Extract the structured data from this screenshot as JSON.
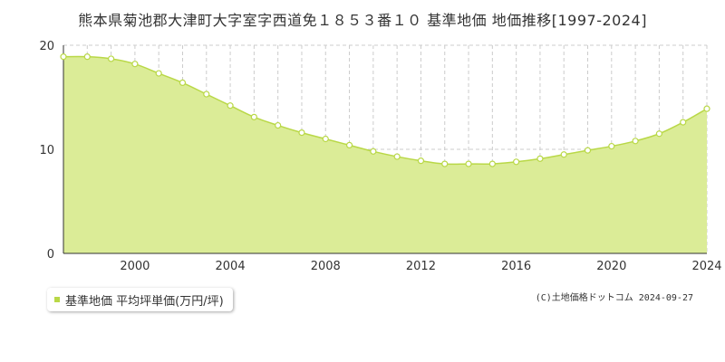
{
  "page_title": "熊本県菊池郡大津町大字室字西道免１８５３番１０ 基準地価 地価推移[1997-2024]",
  "legend_label": "基準地価 平均坪単価(万円/坪)",
  "credit": "(C)土地価格ドットコム 2024-09-27",
  "colors": {
    "area_fill": "#dbec97",
    "line": "#b9d847",
    "marker_fill": "#ffffff",
    "grid": "#cccccc",
    "axis": "#333333"
  },
  "chart_data": {
    "type": "area",
    "title": "熊本県菊池郡大津町大字室字西道免１８５３番１０ 基準地価 地価推移[1997-2024]",
    "xlabel": "",
    "ylabel": "",
    "xlim": [
      1997,
      2024
    ],
    "ylim": [
      0,
      20
    ],
    "x_ticks": [
      2000,
      2004,
      2008,
      2012,
      2016,
      2020,
      2024
    ],
    "y_ticks": [
      0,
      10,
      20
    ],
    "grid": true,
    "legend_position": "bottom-left",
    "series": [
      {
        "name": "基準地価 平均坪単価(万円/坪)",
        "x": [
          1997,
          1998,
          1999,
          2000,
          2001,
          2002,
          2003,
          2004,
          2005,
          2006,
          2007,
          2008,
          2009,
          2010,
          2011,
          2012,
          2013,
          2014,
          2015,
          2016,
          2017,
          2018,
          2019,
          2020,
          2021,
          2022,
          2023,
          2024
        ],
        "values": [
          18.9,
          18.9,
          18.7,
          18.2,
          17.3,
          16.4,
          15.3,
          14.2,
          13.1,
          12.3,
          11.6,
          11.0,
          10.4,
          9.8,
          9.3,
          8.9,
          8.6,
          8.6,
          8.6,
          8.8,
          9.1,
          9.5,
          9.9,
          10.3,
          10.8,
          11.5,
          12.6,
          13.9
        ]
      }
    ]
  }
}
